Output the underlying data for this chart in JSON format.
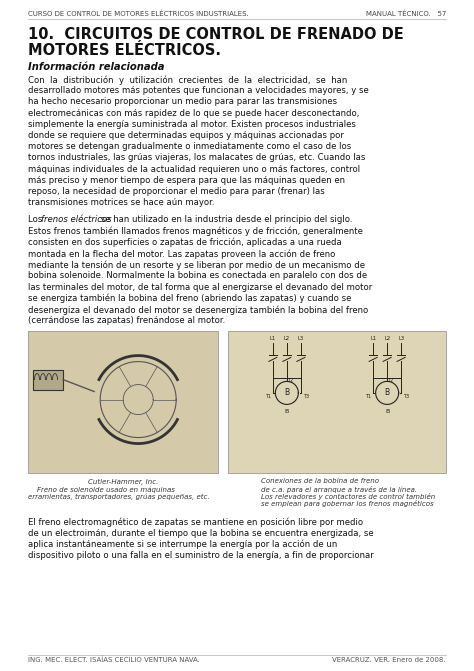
{
  "bg_color": "#ffffff",
  "page_bg": "#f5f0e8",
  "header_left": "CURSO DE CONTROL DE MOTORES ELÉCTRICOS INDUSTRIALES.",
  "header_right": "MANUAL TÉCNICO.   57",
  "title_line1": "10.  CIRCUITOS DE CONTROL DE FRENADO DE",
  "title_line2": "MOTORES ELÉCTRICOS.",
  "subtitle": "Información relacionada",
  "para1_lines": [
    "Con  la  distribución  y  utilización  crecientes  de  la  electricidad,  se  han",
    "desarrollado motores más potentes que funcionan a velocidades mayores, y se",
    "ha hecho necesario proporcionar un medio para parar las transmisiones",
    "electromecánicas con más rapidez de lo que se puede hacer desconectando,",
    "simplemente la energía suministrada al motor. Existen procesos industriales",
    "donde se requiere que determinadas equipos y máquinas accionadas por",
    "motores se detengan gradualmente o inmediatamente como el caso de los",
    "tornos industriales, las grúas viajeras, los malacates de grúas, etc. Cuando las",
    "máquinas individuales de la actualidad requieren uno o más factores, control",
    "más preciso y menor tiempo de espera para que las máquinas queden en",
    "reposo, la necesidad de proporcionar el medio para parar (frenar) las",
    "transmisiones motrices se hace aún mayor."
  ],
  "para2_line1_normal": "Los ",
  "para2_line1_italic": "frenos eléctricos",
  "para2_line1_rest": " se han utilizado en la industria desde el principio del siglo.",
  "para2_lines": [
    "Estos frenos también llamados frenos magnéticos y de fricción, generalmente",
    "consisten en dos superficies o zapatas de fricción, aplicadas a una rueda",
    "montada en la flecha del motor. Las zapatas proveen la acción de freno",
    "mediante la tensión de un resorte y se liberan por medio de un mecanismo de",
    "bobina solenoide. Normalmente la bobina es conectada en paralelo con dos de",
    "las terminales del motor, de tal forma que al energizarse el devanado del motor",
    "se energiza también la bobina del freno (abriendo las zapatas) y cuando se",
    "desenergiza el devanado del motor se desenergiza también la bobina del freno",
    "(cerrándose las zapatas) frenándose al motor."
  ],
  "img_caption_brand": "Cutler-Hammer, Inc.",
  "img_caption_left_line1": "    Freno de solenoide usado en máquinas",
  "img_caption_left_line2": "erramientas, transportadores, grúas pequeñas, etc.",
  "img_caption_right_intro": "Conexiones de la bobina de freno",
  "img_caption_right_lines": [
    "de c.a. para el arranque a través de la línea.",
    "Los relevadores y contactores de control también",
    "se emplean para gobernar los frenos magnéticos"
  ],
  "para3_lines": [
    "El freno electromagnético de zapatas se mantiene en posición libre por medio",
    "de un electroimán, durante el tiempo que la bobina se encuentra energizada, se",
    "aplica instantáneamente si se interrumpe la energía por la acción de un",
    "dispositivo piloto o una falla en el suministro de la energía, a fin de proporcionar"
  ],
  "footer_left": "ING. MEC. ELECT. ISAÍAS CECILIO VENTURA NAVA.",
  "footer_right": "VERACRUZ. VER. Enero de 2008."
}
